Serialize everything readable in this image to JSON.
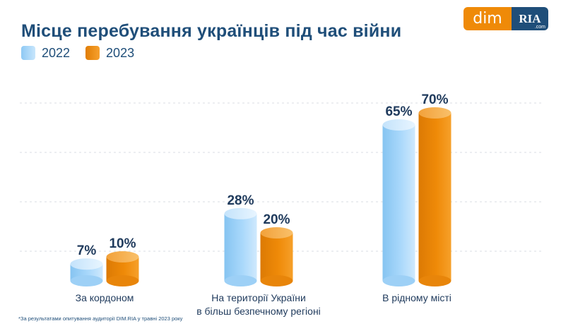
{
  "title": "Місце перебування українців під час війни",
  "logo": {
    "left_text": "dim",
    "right_text": "RIA",
    "suffix": ".com"
  },
  "colors": {
    "2022": "#9fd4fa",
    "2023": "#ef8a08",
    "title": "#1f4e79",
    "text": "#1f3a5c",
    "grid": "#d9dde3"
  },
  "footnote": "*За результатами опитування аудиторії DIM.RIA у травні 2023 року",
  "chart_data": {
    "type": "bar",
    "title": "Місце перебування українців під час війни",
    "categories": [
      [
        "За кордоном"
      ],
      [
        "На території України",
        "в більш безпечному регіоні"
      ],
      [
        "В рідному місті"
      ]
    ],
    "series": [
      {
        "name": "2022",
        "values": [
          7,
          28,
          65
        ],
        "labels": [
          "7%",
          "28%",
          "65%"
        ]
      },
      {
        "name": "2023",
        "values": [
          10,
          20,
          70
        ],
        "labels": [
          "10%",
          "20%",
          "70%"
        ]
      }
    ],
    "unit": "%",
    "ylim": [
      0,
      80
    ],
    "grid": true,
    "legend": "top-left"
  }
}
